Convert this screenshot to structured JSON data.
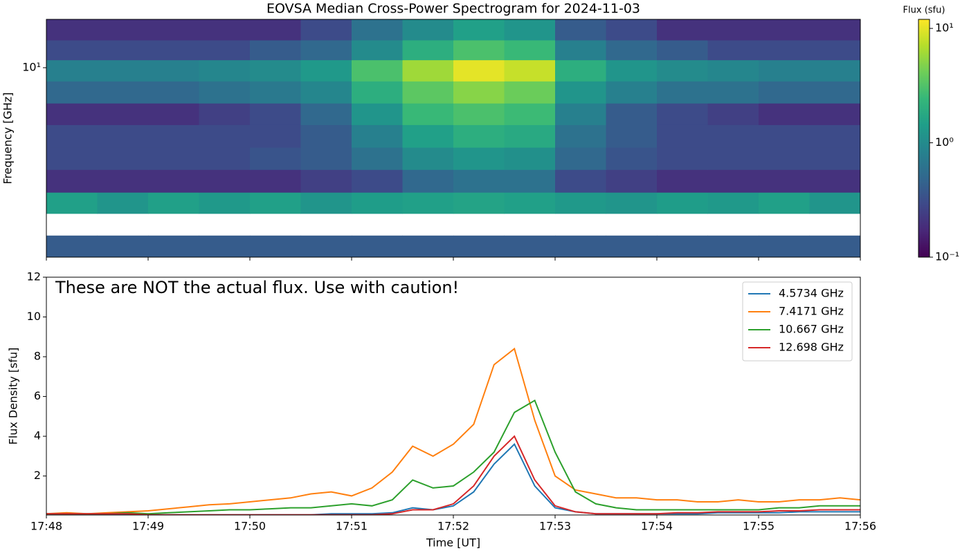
{
  "chart_data": [
    {
      "type": "heatmap",
      "title": "EOVSA Median Cross-Power Spectrogram for 2024-11-03",
      "ylabel": "Frequency [GHz]",
      "ylog": true,
      "ylim": [
        1,
        18
      ],
      "yticks": [
        {
          "value": 10,
          "label": "10¹"
        }
      ],
      "x_bins": [
        1068,
        1068.5,
        1069,
        1069.5,
        1070,
        1070.5,
        1071,
        1071.5,
        1072,
        1072.5,
        1073,
        1073.5,
        1074,
        1074.5,
        1075,
        1075.5,
        1076
      ],
      "y_bins": [
        1,
        1.3,
        1.7,
        2.2,
        2.9,
        3.8,
        5,
        6.5,
        8.5,
        11,
        14,
        18
      ],
      "z": [
        [
          0.4,
          0.4,
          0.4,
          0.4,
          0.4,
          0.4,
          0.4,
          0.4,
          0.4,
          0.4,
          0.4,
          0.4,
          0.4,
          0.4,
          0.4,
          0.4
        ],
        [
          null,
          null,
          null,
          null,
          null,
          null,
          null,
          null,
          null,
          null,
          null,
          null,
          null,
          null,
          null,
          null
        ],
        [
          1.5,
          1.2,
          1.5,
          1.3,
          1.5,
          1.2,
          1.4,
          1.5,
          1.6,
          1.5,
          1.3,
          1.2,
          1.4,
          1.3,
          1.5,
          1.2
        ],
        [
          0.2,
          0.2,
          0.2,
          0.2,
          0.2,
          0.25,
          0.3,
          0.5,
          0.6,
          0.6,
          0.3,
          0.25,
          0.2,
          0.2,
          0.2,
          0.2
        ],
        [
          0.3,
          0.3,
          0.3,
          0.3,
          0.35,
          0.4,
          0.6,
          1,
          1.2,
          1.1,
          0.5,
          0.35,
          0.3,
          0.3,
          0.3,
          0.3
        ],
        [
          0.3,
          0.3,
          0.3,
          0.3,
          0.3,
          0.4,
          0.8,
          1.5,
          2,
          1.8,
          0.6,
          0.4,
          0.3,
          0.3,
          0.3,
          0.3
        ],
        [
          0.2,
          0.2,
          0.2,
          0.25,
          0.3,
          0.5,
          1.2,
          2.5,
          3,
          2.6,
          0.8,
          0.4,
          0.3,
          0.25,
          0.2,
          0.2
        ],
        [
          0.5,
          0.5,
          0.5,
          0.6,
          0.7,
          0.9,
          2,
          3.5,
          5,
          4,
          1.2,
          0.8,
          0.6,
          0.6,
          0.5,
          0.5
        ],
        [
          0.8,
          0.8,
          0.8,
          0.9,
          1,
          1.3,
          3,
          6,
          10,
          8,
          2,
          1.2,
          1,
          0.9,
          0.8,
          0.8
        ],
        [
          0.3,
          0.3,
          0.3,
          0.3,
          0.4,
          0.5,
          1,
          2,
          3,
          2.5,
          0.8,
          0.5,
          0.4,
          0.3,
          0.3,
          0.3
        ],
        [
          0.2,
          0.2,
          0.2,
          0.2,
          0.2,
          0.3,
          0.6,
          1,
          1.5,
          1.2,
          0.4,
          0.3,
          0.2,
          0.2,
          0.2,
          0.2
        ]
      ],
      "colormap": "viridis",
      "clog": true,
      "clim": [
        0.1,
        12
      ],
      "clabel": "Flux (sfu)",
      "cticks": [
        {
          "value": 0.1,
          "label": "10⁻¹"
        },
        {
          "value": 1,
          "label": "10⁰"
        },
        {
          "value": 10,
          "label": "10¹"
        }
      ]
    },
    {
      "type": "line",
      "annotation": "These are NOT the actual flux. Use with caution!",
      "xlabel": "Time [UT]",
      "ylabel": "Flux Density [sfu]",
      "x": [
        1068,
        1068.2,
        1068.4,
        1068.6,
        1068.8,
        1069,
        1069.2,
        1069.4,
        1069.6,
        1069.8,
        1070,
        1070.2,
        1070.4,
        1070.6,
        1070.8,
        1071,
        1071.2,
        1071.4,
        1071.6,
        1071.8,
        1072,
        1072.2,
        1072.4,
        1072.6,
        1072.8,
        1073,
        1073.2,
        1073.4,
        1073.6,
        1073.8,
        1074,
        1074.2,
        1074.4,
        1074.6,
        1074.8,
        1075,
        1075.2,
        1075.4,
        1075.6,
        1075.8,
        1076
      ],
      "xlim": [
        1068,
        1076
      ],
      "xticks": [
        {
          "value": 1068,
          "label": "17:48"
        },
        {
          "value": 1069,
          "label": "17:49"
        },
        {
          "value": 1070,
          "label": "17:50"
        },
        {
          "value": 1071,
          "label": "17:51"
        },
        {
          "value": 1072,
          "label": "17:52"
        },
        {
          "value": 1073,
          "label": "17:53"
        },
        {
          "value": 1074,
          "label": "17:54"
        },
        {
          "value": 1075,
          "label": "17:55"
        },
        {
          "value": 1076,
          "label": "17:56"
        }
      ],
      "ylim": [
        0.04,
        12
      ],
      "yticks": [
        2,
        4,
        6,
        8,
        10,
        12
      ],
      "legend": "upper right",
      "series": [
        {
          "name": "4.5734 GHz",
          "color": "#1f77b4",
          "values": [
            0.05,
            0.05,
            0.05,
            0.05,
            0.05,
            0.05,
            0.05,
            0.05,
            0.05,
            0.05,
            0.05,
            0.05,
            0.05,
            0.05,
            0.1,
            0.1,
            0.1,
            0.15,
            0.4,
            0.3,
            0.5,
            1.2,
            2.6,
            3.6,
            1.5,
            0.4,
            0.2,
            0.1,
            0.1,
            0.1,
            0.1,
            0.1,
            0.1,
            0.15,
            0.15,
            0.15,
            0.15,
            0.2,
            0.2,
            0.2,
            0.2
          ]
        },
        {
          "name": "7.4171 GHz",
          "color": "#ff7f0e",
          "values": [
            0.1,
            0.15,
            0.1,
            0.15,
            0.2,
            0.25,
            0.35,
            0.45,
            0.55,
            0.6,
            0.7,
            0.8,
            0.9,
            1.1,
            1.2,
            1,
            1.4,
            2.2,
            3.5,
            3,
            3.6,
            4.6,
            7.6,
            8.4,
            4.8,
            2,
            1.3,
            1.1,
            0.9,
            0.9,
            0.8,
            0.8,
            0.7,
            0.7,
            0.8,
            0.7,
            0.7,
            0.8,
            0.8,
            0.9,
            0.8
          ]
        },
        {
          "name": "10.667 GHz",
          "color": "#2ca02c",
          "values": [
            0.1,
            0.1,
            0.1,
            0.1,
            0.15,
            0.1,
            0.15,
            0.2,
            0.25,
            0.3,
            0.3,
            0.35,
            0.4,
            0.4,
            0.5,
            0.6,
            0.5,
            0.8,
            1.8,
            1.4,
            1.5,
            2.2,
            3.2,
            5.2,
            5.8,
            3.2,
            1.2,
            0.6,
            0.4,
            0.3,
            0.3,
            0.3,
            0.3,
            0.3,
            0.3,
            0.3,
            0.4,
            0.4,
            0.5,
            0.5,
            0.5
          ]
        },
        {
          "name": "12.698 GHz",
          "color": "#d62728",
          "values": [
            0.1,
            0.1,
            0.1,
            0.1,
            0.1,
            0.05,
            0.05,
            0.05,
            0.05,
            0.05,
            0.05,
            0.05,
            0.05,
            0.05,
            0.05,
            0.05,
            0.05,
            0.1,
            0.3,
            0.3,
            0.6,
            1.5,
            3,
            4,
            1.8,
            0.5,
            0.2,
            0.1,
            0.1,
            0.1,
            0.1,
            0.15,
            0.15,
            0.2,
            0.2,
            0.2,
            0.25,
            0.25,
            0.3,
            0.3,
            0.3
          ]
        }
      ]
    }
  ]
}
